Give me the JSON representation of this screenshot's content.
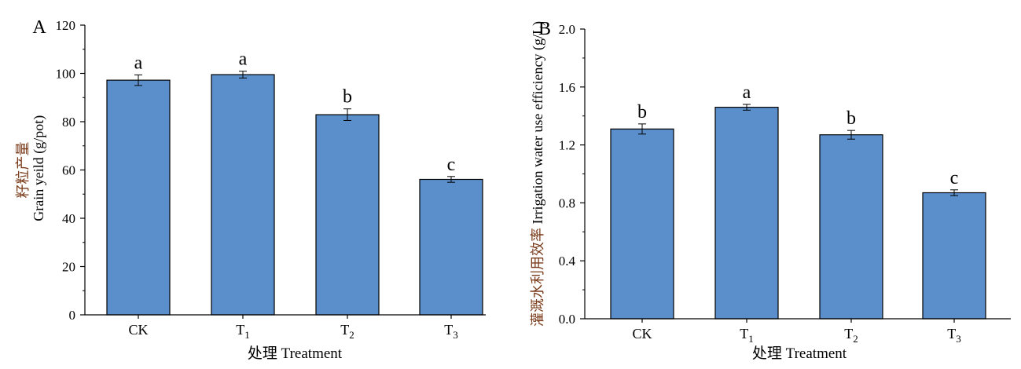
{
  "chart_data": [
    {
      "type": "bar",
      "panel_label": "A",
      "categories": [
        "CK",
        "T1",
        "T2",
        "T3"
      ],
      "category_labels": [
        {
          "base": "CK",
          "sub": ""
        },
        {
          "base": "T",
          "sub": "1"
        },
        {
          "base": "T",
          "sub": "2"
        },
        {
          "base": "T",
          "sub": "3"
        }
      ],
      "values": [
        97.2,
        99.5,
        82.9,
        56.1
      ],
      "errors": [
        2.2,
        1.4,
        2.4,
        1.2
      ],
      "significance": [
        "a",
        "a",
        "b",
        "c"
      ],
      "xlabel": "处理  Treatment",
      "ylabel_cn": "籽粒产量",
      "ylabel_en": "Grain yeild  (g/pot)",
      "ylim": [
        0,
        120
      ],
      "yticks": [
        0,
        20,
        40,
        60,
        80,
        100,
        120
      ],
      "ytick_labels": [
        "0",
        "20",
        "40",
        "60",
        "80",
        "100",
        "120"
      ],
      "bar_color": "#5b8fcb",
      "grid": false
    },
    {
      "type": "bar",
      "panel_label": "B",
      "categories": [
        "CK",
        "T1",
        "T2",
        "T3"
      ],
      "category_labels": [
        {
          "base": "CK",
          "sub": ""
        },
        {
          "base": "T",
          "sub": "1"
        },
        {
          "base": "T",
          "sub": "2"
        },
        {
          "base": "T",
          "sub": "3"
        }
      ],
      "values": [
        1.31,
        1.46,
        1.27,
        0.87
      ],
      "errors": [
        0.035,
        0.02,
        0.03,
        0.02
      ],
      "significance": [
        "b",
        "a",
        "b",
        "c"
      ],
      "xlabel": "处理  Treatment",
      "ylabel_cn": "灌溉水利用效率",
      "ylabel_en": "Irrigation water use efficiency  (g/L)",
      "ylim": [
        0,
        2.0
      ],
      "yticks": [
        0,
        0.4,
        0.8,
        1.2,
        1.6,
        2.0
      ],
      "ytick_labels": [
        "0.0",
        "0.4",
        "0.8",
        "1.2",
        "1.6",
        "2.0"
      ],
      "bar_color": "#5b8fcb",
      "grid": false
    }
  ]
}
